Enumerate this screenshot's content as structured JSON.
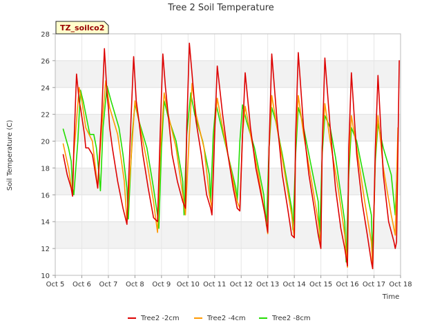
{
  "chart_data": {
    "type": "line",
    "title": "Tree 2 Soil Temperature",
    "xlabel": "Time",
    "ylabel": "Soil Temperature (C)",
    "annotation": "TZ_soilco2",
    "xlim": [
      5,
      18
    ],
    "ylim": [
      10,
      28
    ],
    "x_ticks": [
      5,
      6,
      7,
      8,
      9,
      10,
      11,
      12,
      13,
      14,
      15,
      16,
      17,
      18
    ],
    "x_tick_labels": [
      "Oct 5",
      "Oct 6",
      "Oct 7",
      "Oct 8",
      "Oct 9",
      "Oct 10",
      "Oct 11",
      "Oct 12",
      "Oct 13",
      "Oct 14",
      "Oct 15",
      "Oct 16",
      "Oct 17",
      "Oct 18"
    ],
    "y_ticks": [
      10,
      12,
      14,
      16,
      18,
      20,
      22,
      24,
      26,
      28
    ],
    "grid": true,
    "legend_position": "bottom",
    "series": [
      {
        "name": "Tree2 -2cm",
        "color": "#dd0000",
        "x": [
          5.3,
          5.45,
          5.6,
          5.65,
          5.7,
          5.8,
          5.9,
          5.95,
          6.1,
          6.15,
          6.25,
          6.4,
          6.6,
          6.75,
          6.85,
          6.95,
          7.0,
          7.05,
          7.15,
          7.35,
          7.55,
          7.7,
          7.85,
          7.95,
          8.05,
          8.15,
          8.3,
          8.5,
          8.7,
          8.85,
          8.95,
          9.05,
          9.15,
          9.25,
          9.4,
          9.6,
          9.8,
          9.9,
          9.95,
          10.05,
          10.15,
          10.3,
          10.5,
          10.7,
          10.85,
          10.9,
          11.0,
          11.1,
          11.3,
          11.5,
          11.7,
          11.85,
          11.95,
          12.05,
          12.15,
          12.35,
          12.55,
          12.75,
          12.9,
          13.0,
          13.05,
          13.15,
          13.35,
          13.55,
          13.75,
          13.9,
          14.0,
          14.05,
          14.15,
          14.35,
          14.55,
          14.75,
          14.9,
          15.0,
          15.05,
          15.15,
          15.35,
          15.55,
          15.75,
          15.9,
          16.0,
          16.05,
          16.15,
          16.35,
          16.55,
          16.75,
          16.9,
          16.95,
          17.05,
          17.15,
          17.35,
          17.55,
          17.75,
          17.8,
          17.85,
          17.95
        ],
        "y": [
          19.0,
          17.5,
          16.5,
          15.9,
          19.5,
          25.0,
          23.0,
          22.5,
          20.5,
          19.5,
          19.5,
          19.0,
          16.5,
          22.0,
          26.9,
          23.5,
          22.5,
          21.0,
          19.5,
          17.0,
          15.0,
          13.8,
          21.5,
          26.3,
          23.0,
          21.5,
          19.0,
          16.5,
          14.3,
          14.0,
          20.5,
          26.5,
          24.0,
          22.0,
          19.0,
          17.0,
          15.5,
          15.0,
          21.0,
          27.3,
          25.0,
          21.5,
          19.0,
          16.0,
          15.0,
          14.5,
          20.5,
          25.6,
          22.0,
          19.0,
          16.5,
          15.0,
          14.8,
          20.5,
          25.1,
          21.0,
          18.0,
          16.0,
          14.5,
          13.2,
          19.5,
          26.5,
          21.5,
          17.5,
          15.0,
          13.0,
          12.8,
          20.5,
          26.6,
          21.0,
          17.5,
          15.0,
          13.0,
          12.0,
          19.5,
          26.2,
          21.0,
          16.5,
          13.5,
          12.0,
          10.7,
          19.5,
          25.1,
          19.0,
          15.5,
          13.0,
          11.0,
          10.5,
          19.5,
          24.9,
          17.5,
          14.0,
          12.5,
          12.0,
          12.5,
          26.0
        ]
      },
      {
        "name": "Tree2 -4cm",
        "color": "#ff9900",
        "x": [
          5.3,
          5.5,
          5.65,
          5.7,
          5.9,
          6.0,
          6.15,
          6.4,
          6.6,
          6.75,
          6.9,
          7.05,
          7.35,
          7.6,
          7.7,
          7.9,
          8.0,
          8.15,
          8.45,
          8.7,
          8.85,
          8.95,
          9.1,
          9.25,
          9.55,
          9.8,
          9.9,
          10.05,
          10.15,
          10.3,
          10.6,
          10.8,
          10.9,
          11.0,
          11.1,
          11.3,
          11.6,
          11.85,
          11.95,
          12.05,
          12.15,
          12.35,
          12.65,
          12.9,
          13.0,
          13.05,
          13.15,
          13.35,
          13.65,
          13.9,
          14.0,
          14.05,
          14.15,
          14.35,
          14.65,
          14.9,
          15.0,
          15.05,
          15.15,
          15.35,
          15.65,
          15.9,
          16.0,
          16.05,
          16.15,
          16.35,
          16.65,
          16.9,
          16.95,
          17.05,
          17.15,
          17.35,
          17.65,
          17.8,
          17.9
        ],
        "y": [
          19.8,
          18.0,
          16.0,
          19.0,
          24.0,
          23.0,
          21.0,
          20.0,
          16.5,
          21.0,
          24.5,
          22.5,
          20.5,
          17.0,
          14.0,
          20.0,
          23.0,
          21.5,
          18.5,
          15.5,
          13.2,
          19.0,
          23.6,
          22.0,
          19.5,
          16.0,
          14.5,
          20.5,
          24.3,
          22.0,
          19.5,
          16.0,
          15.0,
          21.0,
          23.2,
          21.0,
          18.0,
          15.5,
          15.0,
          20.5,
          22.6,
          20.5,
          17.5,
          14.5,
          13.1,
          19.5,
          23.4,
          21.0,
          17.5,
          14.5,
          12.8,
          20.0,
          23.4,
          20.5,
          17.0,
          14.0,
          12.3,
          19.5,
          22.8,
          20.0,
          16.5,
          13.0,
          10.6,
          18.5,
          21.9,
          19.5,
          15.5,
          12.5,
          10.5,
          19.0,
          21.9,
          18.0,
          14.5,
          13.0,
          21.0
        ]
      },
      {
        "name": "Tree2 -8cm",
        "color": "#22dd00",
        "x": [
          5.3,
          5.5,
          5.6,
          5.65,
          5.7,
          5.85,
          5.95,
          6.05,
          6.3,
          6.45,
          6.55,
          6.65,
          6.7,
          6.8,
          6.95,
          7.1,
          7.4,
          7.55,
          7.7,
          7.75,
          7.9,
          8.0,
          8.15,
          8.45,
          8.7,
          8.85,
          8.9,
          9.0,
          9.1,
          9.25,
          9.55,
          9.8,
          9.85,
          9.95,
          10.1,
          10.25,
          10.55,
          10.8,
          10.85,
          10.95,
          11.05,
          11.2,
          11.5,
          11.8,
          11.85,
          11.95,
          12.05,
          12.2,
          12.5,
          12.85,
          12.95,
          13.05,
          13.15,
          13.3,
          13.55,
          13.9,
          13.95,
          14.05,
          14.15,
          14.3,
          14.55,
          14.9,
          14.95,
          15.05,
          15.15,
          15.35,
          15.55,
          15.9,
          15.95,
          16.05,
          16.15,
          16.35,
          16.6,
          16.9,
          16.95,
          17.05,
          17.15,
          17.35,
          17.65,
          17.8,
          17.9
        ],
        "y": [
          20.9,
          19.5,
          18.5,
          16.5,
          16.0,
          20.0,
          23.8,
          23.0,
          20.5,
          20.5,
          19.5,
          17.5,
          16.3,
          21.0,
          24.1,
          23.0,
          21.0,
          19.0,
          16.5,
          14.2,
          20.5,
          22.8,
          21.5,
          19.5,
          16.5,
          14.5,
          13.5,
          19.5,
          23.0,
          21.8,
          20.0,
          17.0,
          14.5,
          20.5,
          23.6,
          22.0,
          20.0,
          17.5,
          15.5,
          20.5,
          22.8,
          21.5,
          19.0,
          16.5,
          15.5,
          20.0,
          22.7,
          21.5,
          19.5,
          16.0,
          13.7,
          19.5,
          22.5,
          21.5,
          19.0,
          15.0,
          13.4,
          19.0,
          22.5,
          21.5,
          19.0,
          15.5,
          12.8,
          19.0,
          21.9,
          21.0,
          18.8,
          14.0,
          11.0,
          17.5,
          21.0,
          20.0,
          17.5,
          14.5,
          11.3,
          18.5,
          21.3,
          19.5,
          17.5,
          14.5,
          19.7
        ]
      }
    ]
  }
}
